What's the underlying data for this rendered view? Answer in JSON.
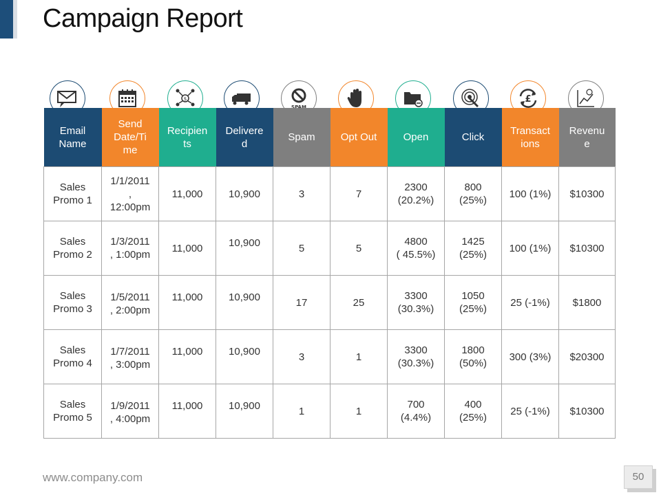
{
  "title": "Campaign Report",
  "footer": {
    "url": "www.company.com",
    "page_number": "50"
  },
  "colors": {
    "navy": "#1c4b73",
    "orange": "#f2862b",
    "teal": "#1fae8f",
    "gray": "#7f7f7f"
  },
  "table": {
    "headers": [
      {
        "label": "Email\nName",
        "icon": "email-icon",
        "color": "navy"
      },
      {
        "label": "Send\nDate/Ti\nme",
        "icon": "calendar-icon",
        "color": "orange"
      },
      {
        "label": "Recipien\nts",
        "icon": "recipients-network-icon",
        "color": "teal"
      },
      {
        "label": "Delivere\nd",
        "icon": "delivery-truck-icon",
        "color": "navy"
      },
      {
        "label": "Spam",
        "icon": "spam-icon",
        "icon_text": "SPAM",
        "color": "gray"
      },
      {
        "label": "Opt Out",
        "icon": "stop-hand-icon",
        "color": "orange"
      },
      {
        "label": "Open",
        "icon": "open-folder-icon",
        "color": "teal"
      },
      {
        "label": "Click",
        "icon": "click-target-icon",
        "color": "navy"
      },
      {
        "label": "Transact\nions",
        "icon": "pound-exchange-icon",
        "color": "orange"
      },
      {
        "label": "Revenu\ne",
        "icon": "revenue-chart-icon",
        "color": "gray"
      }
    ],
    "rows": [
      [
        "Sales\nPromo 1",
        "1/1/2011\n,\n12:00pm",
        "11,000",
        "10,900",
        "3",
        "7",
        "2300\n(20.2%)",
        "800\n(25%)",
        "100 (1%)",
        "$10300"
      ],
      [
        "Sales\nPromo 2",
        "1/3/2011\n, 1:00pm",
        "11,000",
        "10,900",
        "5",
        "5",
        "4800\n( 45.5%)",
        "1425\n(25%)",
        "100 (1%)",
        "$10300"
      ],
      [
        "Sales\nPromo 3",
        "1/5/2011\n, 2:00pm",
        "11,000",
        "10,900",
        "17",
        "25",
        "3300\n(30.3%)",
        "1050\n(25%)",
        "25 (-1%)",
        "$1800"
      ],
      [
        "Sales\nPromo 4",
        "1/7/2011\n, 3:00pm",
        "11,000",
        "10,900",
        "3",
        "1",
        "3300\n(30.3%)",
        "1800\n(50%)",
        "300 (3%)",
        "$20300"
      ],
      [
        "Sales\nPromo 5",
        "1/9/2011\n, 4:00pm",
        "11,000",
        "10,900",
        "1",
        "1",
        "700\n(4.4%)",
        "400\n(25%)",
        "25 (-1%)",
        "$10300"
      ]
    ]
  }
}
